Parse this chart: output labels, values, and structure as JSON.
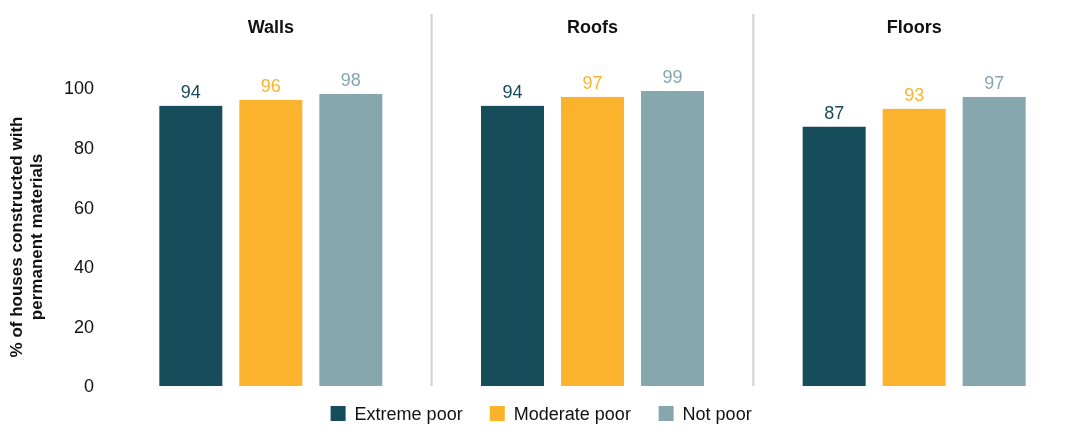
{
  "chart_data": {
    "type": "bar",
    "categories": [
      "Walls",
      "Roofs",
      "Floors"
    ],
    "ylabel": "% of houses constructed with permanent materials",
    "ylim": [
      0,
      100
    ],
    "yticks": [
      0,
      20,
      40,
      60,
      80,
      100
    ],
    "series": [
      {
        "name": "Extreme poor",
        "color": "#174c5a",
        "values": [
          94,
          94,
          87
        ]
      },
      {
        "name": "Moderate poor",
        "color": "#fbb32d",
        "values": [
          96,
          97,
          93
        ]
      },
      {
        "name": "Not poor",
        "color": "#86a7ad",
        "values": [
          98,
          99,
          97
        ]
      }
    ],
    "data_labels": true,
    "legend": "bottom",
    "grid": false
  }
}
